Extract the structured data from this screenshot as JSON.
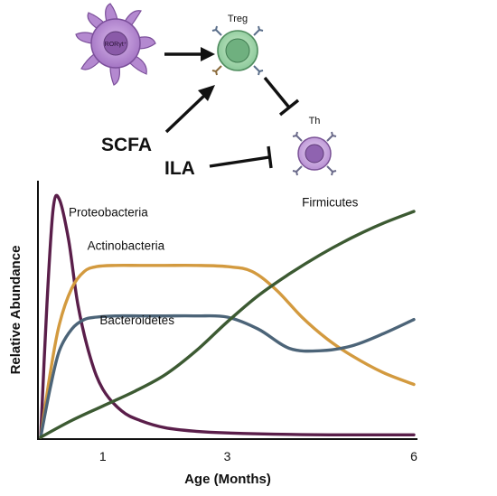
{
  "schematic": {
    "cell_labels": {
      "rorgt": "RORγt⁺",
      "treg": "Treg",
      "th": "Th"
    },
    "metabolites": {
      "scfa": "SCFA",
      "ila": "ILA"
    },
    "colors": {
      "rorgt_cell": "#b68ad1",
      "treg_cell": "#8fcf9a",
      "th_cell": "#a07ac0",
      "arrow": "#111111"
    }
  },
  "chart_data": {
    "type": "line",
    "xlabel": "Age (Months)",
    "ylabel": "Relative Abundance",
    "x_tick_labels": [
      {
        "x": 1,
        "label": "1"
      },
      {
        "x": 3,
        "label": "3"
      },
      {
        "x": 6,
        "label": "6"
      }
    ],
    "xlim": [
      0,
      6
    ],
    "ylim": [
      0,
      1
    ],
    "grid": false,
    "legend": "none (series labelled directly on lines)",
    "series": [
      {
        "name": "Proteobacteria",
        "color": "#5a1e4a",
        "x": [
          0,
          0.1,
          0.2,
          0.3,
          0.45,
          0.6,
          0.8,
          1.0,
          1.3,
          1.6,
          2.0,
          2.5,
          3.0,
          4.0,
          5.0,
          6.0
        ],
        "y": [
          0.0,
          0.55,
          0.95,
          0.99,
          0.82,
          0.55,
          0.33,
          0.2,
          0.11,
          0.07,
          0.04,
          0.025,
          0.018,
          0.012,
          0.01,
          0.01
        ]
      },
      {
        "name": "Actinobacteria",
        "color": "#d39a3f",
        "x": [
          0,
          0.15,
          0.3,
          0.5,
          0.7,
          0.9,
          1.2,
          1.6,
          2.0,
          2.5,
          3.0,
          3.4,
          3.8,
          4.2,
          4.6,
          5.0,
          5.5,
          6.0
        ],
        "y": [
          0.0,
          0.26,
          0.47,
          0.62,
          0.69,
          0.71,
          0.715,
          0.715,
          0.715,
          0.715,
          0.71,
          0.69,
          0.61,
          0.5,
          0.41,
          0.34,
          0.27,
          0.22
        ]
      },
      {
        "name": "Bacteroidetes",
        "color": "#4c6478",
        "x": [
          0,
          0.15,
          0.3,
          0.5,
          0.7,
          0.9,
          1.2,
          1.6,
          2.0,
          2.5,
          3.0,
          3.5,
          4.0,
          4.5,
          5.0,
          5.5,
          6.0
        ],
        "y": [
          0.0,
          0.2,
          0.36,
          0.45,
          0.49,
          0.5,
          0.505,
          0.505,
          0.505,
          0.505,
          0.5,
          0.45,
          0.37,
          0.36,
          0.38,
          0.43,
          0.49
        ]
      },
      {
        "name": "Firmicutes",
        "color": "#3c5a32",
        "x": [
          0,
          0.5,
          1.0,
          1.5,
          2.0,
          2.5,
          3.0,
          3.5,
          4.0,
          4.5,
          5.0,
          5.5,
          6.0
        ],
        "y": [
          0.0,
          0.07,
          0.13,
          0.19,
          0.26,
          0.36,
          0.48,
          0.59,
          0.68,
          0.76,
          0.83,
          0.89,
          0.94
        ]
      }
    ],
    "series_label_anchors": [
      {
        "name": "Proteobacteria",
        "x": 0.45,
        "y": 0.92
      },
      {
        "name": "Actinobacteria",
        "x": 0.75,
        "y": 0.78
      },
      {
        "name": "Bacteroidetes",
        "x": 0.95,
        "y": 0.47
      },
      {
        "name": "Firmicutes",
        "x": 4.2,
        "y": 0.96
      }
    ]
  }
}
